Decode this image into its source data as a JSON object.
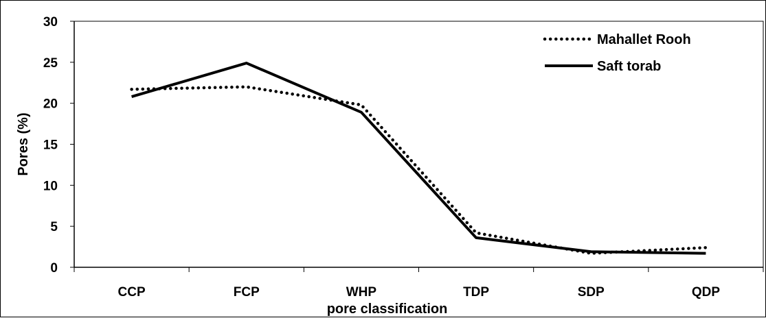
{
  "chart_data": {
    "type": "line",
    "categories": [
      "CCP",
      "FCP",
      "WHP",
      "TDP",
      "SDP",
      "QDP"
    ],
    "xlabel": "pore classification",
    "ylabel": "Pores (%)",
    "ylim": [
      0,
      30
    ],
    "yticks": [
      "0",
      "5",
      "10",
      "15",
      "20",
      "25",
      "30"
    ],
    "grid": false,
    "legend_position": "top-right",
    "series": [
      {
        "name": "Mahallet Rooh",
        "style": "dotted",
        "color": "#000000",
        "values": [
          21.7,
          22.0,
          19.8,
          4.2,
          1.7,
          2.4
        ]
      },
      {
        "name": "Saft torab",
        "style": "solid",
        "color": "#000000",
        "values": [
          20.8,
          24.9,
          18.9,
          3.6,
          1.9,
          1.7
        ]
      }
    ]
  }
}
